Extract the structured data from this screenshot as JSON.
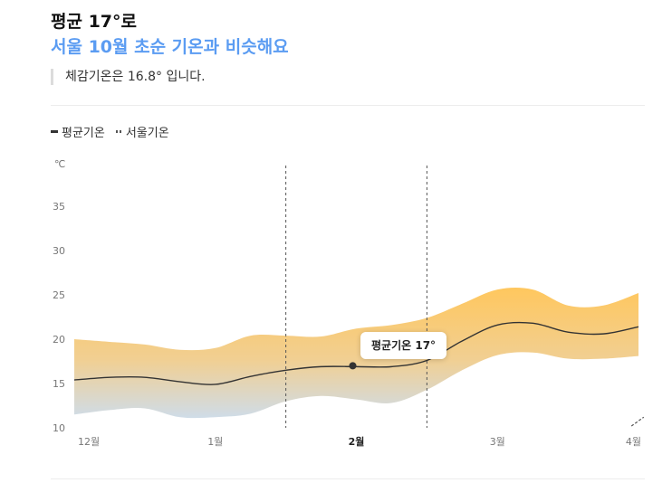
{
  "header": {
    "title": "평균 17°로",
    "subtitle": "서울 10월 초순 기온과 비슷해요",
    "feels_like": "체감기온은 16.8° 입니다."
  },
  "legend": {
    "avg_label": "평균기온",
    "seoul_label": "서울기온"
  },
  "tooltip": {
    "text": "평균기온 17°"
  },
  "colors": {
    "accent": "#5b9cf2",
    "band_top": "#ffc75e",
    "band_bottom": "#cfdce8",
    "line": "#333333"
  },
  "chart_data": {
    "type": "area",
    "unit": "℃",
    "x_labels": [
      "12월",
      "1월",
      "2월",
      "3월",
      "4월"
    ],
    "x_label_positions": [
      0,
      1,
      2,
      3,
      4
    ],
    "highlighted_label": "2월",
    "ylim": [
      10,
      37
    ],
    "yticks": [
      10,
      15,
      20,
      25,
      30,
      35
    ],
    "markers": [
      1.5,
      2.5
    ],
    "x": [
      0,
      0.25,
      0.5,
      0.75,
      1.0,
      1.25,
      1.5,
      1.75,
      2.0,
      2.25,
      2.5,
      2.75,
      3.0,
      3.25,
      3.5,
      3.75,
      4.0
    ],
    "series": [
      {
        "name": "평균기온",
        "values": [
          15.4,
          15.7,
          15.7,
          15.2,
          14.9,
          15.8,
          16.5,
          16.9,
          16.9,
          16.9,
          17.6,
          19.8,
          21.6,
          21.8,
          20.8,
          20.6,
          21.4
        ]
      }
    ],
    "band_upper": [
      20.0,
      19.7,
      19.4,
      18.8,
      19.0,
      20.4,
      20.4,
      20.3,
      21.2,
      21.6,
      22.4,
      24.0,
      25.6,
      25.6,
      23.8,
      23.8,
      25.2
    ],
    "band_lower": [
      11.5,
      12.0,
      12.2,
      11.2,
      11.2,
      11.6,
      13.0,
      13.6,
      13.2,
      12.8,
      14.3,
      16.5,
      18.2,
      18.5,
      17.8,
      17.8,
      18.1
    ],
    "highlight_point": {
      "x": 2.0,
      "y": 16.9
    },
    "seoul_visible": {
      "x": [
        3.95,
        4.05
      ],
      "values": [
        10,
        11.2
      ]
    }
  }
}
